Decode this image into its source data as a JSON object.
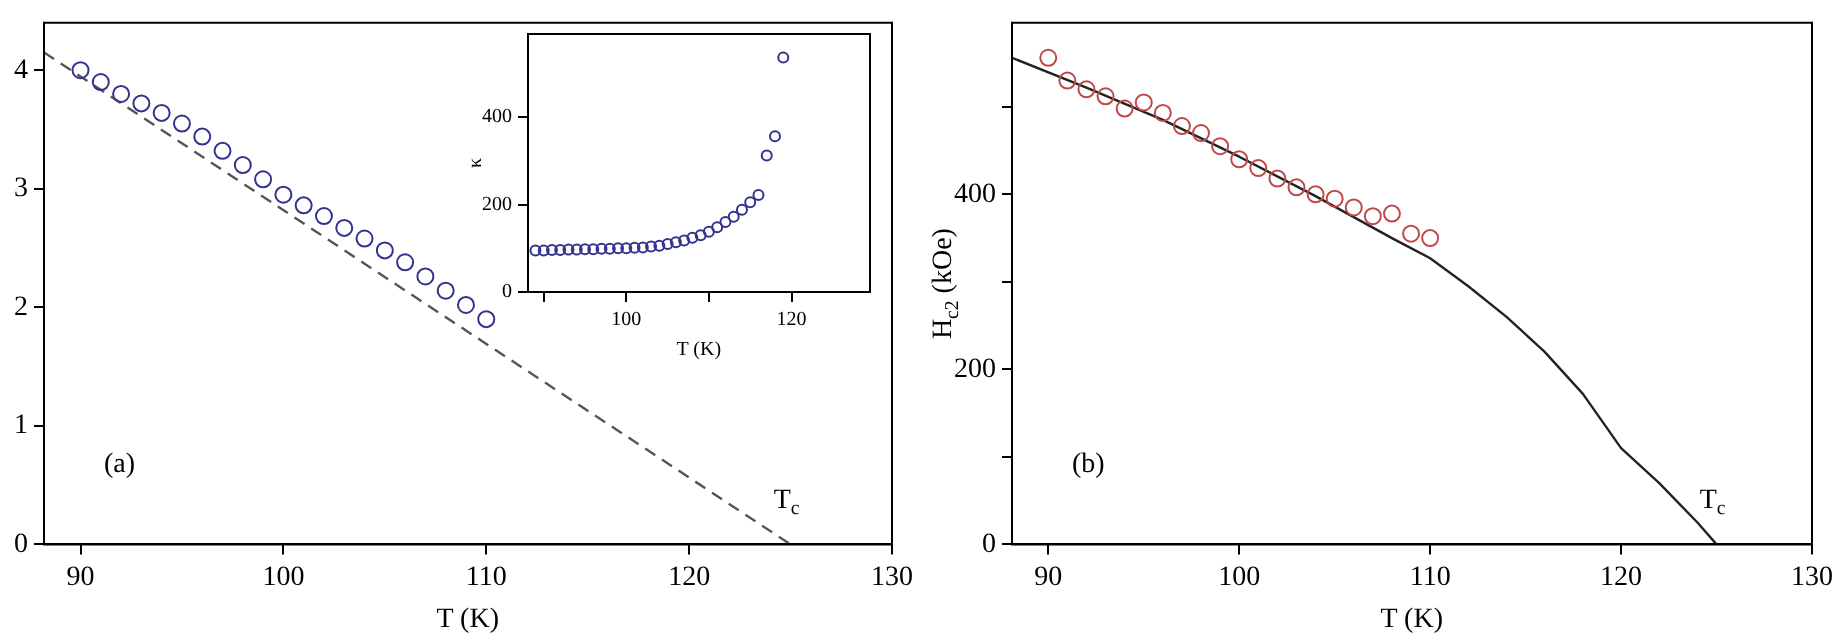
{
  "chart_data": [
    {
      "type": "scatter",
      "xlabel": "T (K)",
      "xlim": [
        88.2,
        130
      ],
      "xticks": [
        90,
        100,
        110,
        120,
        130
      ],
      "ylim": [
        0,
        4.4
      ],
      "yticks": [
        0,
        1,
        2,
        3,
        4
      ],
      "grid": false,
      "legend": false,
      "series": [
        {
          "type": "scatter",
          "color": "#33338f",
          "marker": "circle",
          "x": [
            90,
            91,
            92,
            93,
            94,
            95,
            96,
            97,
            98,
            99,
            100,
            101,
            102,
            103,
            104,
            105,
            106,
            107,
            108,
            109,
            110
          ],
          "values": [
            4.0,
            3.9,
            3.8,
            3.72,
            3.64,
            3.55,
            3.44,
            3.32,
            3.2,
            3.08,
            2.95,
            2.86,
            2.77,
            2.67,
            2.58,
            2.48,
            2.38,
            2.26,
            2.14,
            2.02,
            1.9
          ]
        },
        {
          "type": "line",
          "color": "#555555",
          "marker": "none",
          "line_style": "dashed",
          "x": [
            88.2,
            125
          ],
          "values": [
            4.15,
            0
          ]
        }
      ],
      "annotations": [
        "(a)",
        {
          "text": "T$_{c}$",
          "x": 125,
          "y": 0
        }
      ]
    },
    {
      "type": "scatter",
      "xlabel": "T (K)",
      "ylabel": "κ",
      "xlim": [
        88.1,
        129.5
      ],
      "xticks": [
        {
          "value": 90,
          "label": null
        },
        100,
        {
          "value": 110,
          "label": null
        },
        120
      ],
      "ylim": [
        0,
        590
      ],
      "yticks": [
        0,
        200,
        400
      ],
      "grid": false,
      "legend": false,
      "series": [
        {
          "type": "scatter",
          "color": "#33338f",
          "marker": "circle",
          "x": [
            89,
            90,
            91,
            92,
            93,
            94,
            95,
            96,
            97,
            98,
            99,
            100,
            101,
            102,
            103,
            104,
            105,
            106,
            107,
            108,
            109,
            110,
            111,
            112,
            113,
            114,
            115,
            116,
            117,
            118,
            119
          ],
          "values": [
            95,
            95,
            96,
            96,
            97,
            97,
            98,
            98,
            99,
            99,
            100,
            100,
            101,
            102,
            104,
            106,
            110,
            114,
            118,
            124,
            130,
            138,
            148,
            160,
            172,
            188,
            205,
            222,
            312,
            356,
            536
          ]
        }
      ]
    },
    {
      "type": "scatter",
      "xlabel": "T (K)",
      "ylabel": "H$_{c2}$ (kOe)",
      "xlim": [
        88.1,
        130
      ],
      "xticks": [
        90,
        100,
        110,
        120,
        130
      ],
      "ylim": [
        0,
        596
      ],
      "yticks": [
        0,
        {
          "value": 100,
          "label": null
        },
        200,
        {
          "value": 300,
          "label": null
        },
        400,
        {
          "value": 500,
          "label": null
        }
      ],
      "grid": false,
      "legend": false,
      "series": [
        {
          "type": "scatter",
          "color": "#c04848",
          "marker": "circle",
          "x": [
            90,
            91,
            92,
            93,
            94,
            95,
            96,
            97,
            98,
            99,
            100,
            101,
            102,
            103,
            104,
            105,
            106,
            107,
            108,
            109,
            110
          ],
          "values": [
            556,
            530,
            520,
            512,
            498,
            505,
            493,
            478,
            470,
            455,
            440,
            430,
            418,
            408,
            400,
            395,
            385,
            375,
            378,
            355,
            350
          ]
        },
        {
          "type": "line",
          "color": "#222222",
          "marker": "none",
          "line_style": "solid",
          "x": [
            88.1,
            92,
            96,
            100,
            104,
            108,
            110,
            112,
            114,
            116,
            118,
            120,
            122,
            124,
            125
          ],
          "values": [
            556,
            522,
            485,
            443,
            398,
            350,
            327,
            295,
            260,
            220,
            172,
            110,
            70,
            25,
            0
          ]
        }
      ],
      "annotations": [
        "(b)",
        {
          "text": "T$_{c}$",
          "x": 125,
          "y": 0
        }
      ]
    }
  ]
}
